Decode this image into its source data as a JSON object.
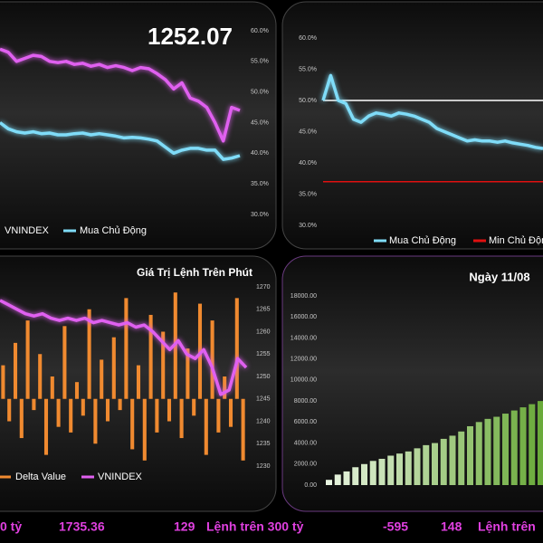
{
  "chart_data": [
    {
      "type": "line",
      "title": "1252.07",
      "ylim": [
        30,
        60
      ],
      "yticks": [
        {
          "value": 30,
          "label": "30.0%"
        },
        {
          "value": 35,
          "label": "35.0%"
        },
        {
          "value": 40,
          "label": "40.0%"
        },
        {
          "value": 45,
          "label": "45.0%"
        },
        {
          "value": 50,
          "label": "50.0%"
        },
        {
          "value": 55,
          "label": "55.0%"
        },
        {
          "value": 60,
          "label": "60.0%"
        }
      ],
      "series": [
        {
          "name": "VNINDEX",
          "color": "#e060f0",
          "values": [
            57,
            56.5,
            55,
            55.5,
            56,
            55.8,
            55,
            54.8,
            55,
            54.5,
            54.7,
            54.2,
            54.5,
            54,
            54.3,
            54,
            53.5,
            54,
            53.8,
            53,
            52,
            50.5,
            51.5,
            49,
            48.5,
            47.5,
            45,
            42,
            47.5,
            47
          ]
        },
        {
          "name": "Mua Chủ Động",
          "color": "#7fdcf8",
          "values": [
            45,
            44,
            43.5,
            43.3,
            43.5,
            43.2,
            43.3,
            43,
            43,
            43.2,
            43.3,
            43,
            43.2,
            43,
            42.8,
            42.5,
            42.6,
            42.5,
            42.3,
            42,
            41,
            40,
            40.5,
            40.8,
            40.8,
            40.5,
            40.5,
            39,
            39.2,
            39.6
          ]
        }
      ]
    },
    {
      "type": "line",
      "ylim": [
        30,
        60
      ],
      "yticks": [
        {
          "value": 30,
          "label": "30.0%"
        },
        {
          "value": 35,
          "label": "35.0%"
        },
        {
          "value": 40,
          "label": "40.0%"
        },
        {
          "value": 45,
          "label": "45.0%"
        },
        {
          "value": 50,
          "label": "50.0%"
        },
        {
          "value": 55,
          "label": "55.0%"
        },
        {
          "value": 60,
          "label": "60.0%"
        }
      ],
      "hlines": [
        {
          "value": 50,
          "color": "#ffffff"
        }
      ],
      "series": [
        {
          "name": "Mua Chủ Động",
          "color": "#7fdcf8",
          "values": [
            50,
            54,
            50,
            49.5,
            47,
            46.5,
            47.5,
            48,
            47.8,
            47.5,
            48,
            47.8,
            47.5,
            47,
            46.5,
            45.5,
            45,
            44.5,
            44,
            43.5,
            43.7,
            43.5,
            43.5,
            43.3,
            43.5,
            43.2,
            43,
            42.8,
            42.5,
            42.3
          ]
        },
        {
          "name": "Min Chủ Động",
          "color": "#e01010",
          "values": [
            37,
            37,
            37,
            37,
            37,
            37,
            37,
            37,
            37,
            37,
            37,
            37,
            37,
            37,
            37,
            37,
            37,
            37,
            37,
            37,
            37,
            37,
            37,
            37,
            37,
            37,
            37,
            37,
            37,
            37
          ]
        }
      ]
    },
    {
      "type": "combo",
      "title": "Giá Trị Lệnh Trên Phút",
      "ylim": [
        -600,
        1000
      ],
      "y2lim": [
        1230,
        1270
      ],
      "y2ticks": [
        1230,
        1235,
        1240,
        1245,
        1250,
        1255,
        1260,
        1265,
        1270
      ],
      "series": [
        {
          "name": "Delta Value",
          "type": "bar",
          "color": "#f08a30",
          "values": [
            300,
            -200,
            500,
            -350,
            700,
            -100,
            400,
            -500,
            200,
            -250,
            650,
            -300,
            150,
            -150,
            800,
            -400,
            350,
            -200,
            550,
            -100,
            900,
            -450,
            300,
            -550,
            750,
            -300,
            600,
            -200,
            950,
            -350,
            450,
            -150,
            850,
            -500,
            700,
            -300,
            200,
            -250,
            900,
            -550
          ]
        },
        {
          "name": "VNINDEX",
          "type": "line",
          "axis": "y2",
          "color": "#e060f0",
          "values": [
            1267,
            1266,
            1265,
            1264,
            1263.5,
            1264,
            1263,
            1262.5,
            1263,
            1262.5,
            1263,
            1262,
            1262.5,
            1262,
            1261.5,
            1262,
            1261,
            1261.5,
            1260,
            1258,
            1256,
            1258,
            1255,
            1254,
            1256,
            1252,
            1246,
            1247,
            1254,
            1252
          ]
        }
      ]
    },
    {
      "type": "bar",
      "title": "Ngày 11/08",
      "ylim": [
        0,
        18000
      ],
      "yticks": [
        {
          "value": 0,
          "label": "0.00"
        },
        {
          "value": 2000,
          "label": "2000.00"
        },
        {
          "value": 4000,
          "label": "4000.00"
        },
        {
          "value": 6000,
          "label": "6000.00"
        },
        {
          "value": 8000,
          "label": "8000.00"
        },
        {
          "value": 10000,
          "label": "10000.00"
        },
        {
          "value": 12000,
          "label": "12000.00"
        },
        {
          "value": 14000,
          "label": "14000.00"
        },
        {
          "value": 16000,
          "label": "16000.00"
        },
        {
          "value": 18000,
          "label": "18000.00"
        }
      ],
      "color_start": "#e8f4e0",
      "color_end": "#6aaa3a",
      "values": [
        500,
        1000,
        1300,
        1700,
        2000,
        2300,
        2500,
        2800,
        3000,
        3200,
        3500,
        3800,
        4000,
        4400,
        4700,
        5100,
        5600,
        6000,
        6300,
        6500,
        6800,
        7100,
        7400,
        7700,
        8000
      ]
    }
  ],
  "footer": [
    "0 tỷ",
    "1735.36",
    "129",
    "Lệnh trên 300 tỷ",
    "-595",
    "148",
    "Lệnh trên"
  ]
}
